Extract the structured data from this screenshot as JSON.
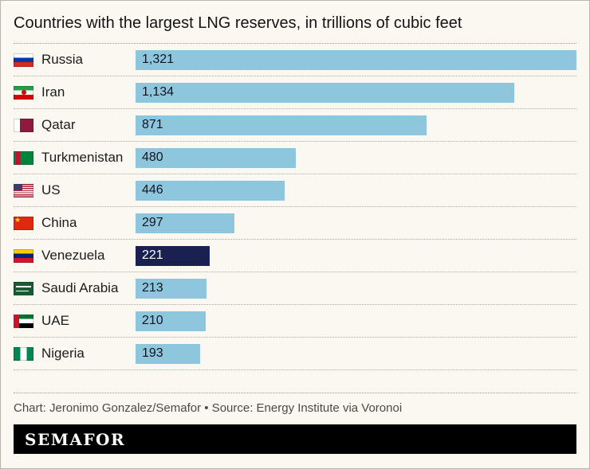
{
  "title": "Countries with the largest LNG reserves, in trillions of cubic feet",
  "chart_data": {
    "type": "bar",
    "orientation": "horizontal",
    "title": "Countries with the largest LNG reserves, in trillions of cubic feet",
    "categories": [
      "Russia",
      "Iran",
      "Qatar",
      "Turkmenistan",
      "US",
      "China",
      "Venezuela",
      "Saudi Arabia",
      "UAE",
      "Nigeria"
    ],
    "values": [
      1321,
      1134,
      871,
      480,
      446,
      297,
      221,
      213,
      210,
      193
    ],
    "value_labels": [
      "1,321",
      "1,134",
      "871",
      "480",
      "446",
      "297",
      "221",
      "213",
      "210",
      "193"
    ],
    "highlighted_category": "Venezuela",
    "xlim": [
      0,
      1321
    ],
    "grid": false,
    "legend": false,
    "colors": {
      "bar": "#8ec6de",
      "highlight": "#1a2152",
      "background": "#fbf8f1",
      "value_text": "#11151f",
      "highlight_value_text": "#ffffff"
    },
    "flags": [
      "russia",
      "iran",
      "qatar",
      "turkmenistan",
      "us",
      "china",
      "venezuela",
      "saudi-arabia",
      "uae",
      "nigeria"
    ]
  },
  "footer": {
    "credit": "Chart: Jeronimo Gonzalez/Semafor • Source: Energy Institute via Voronoi",
    "logo": "SEMAFOR"
  }
}
